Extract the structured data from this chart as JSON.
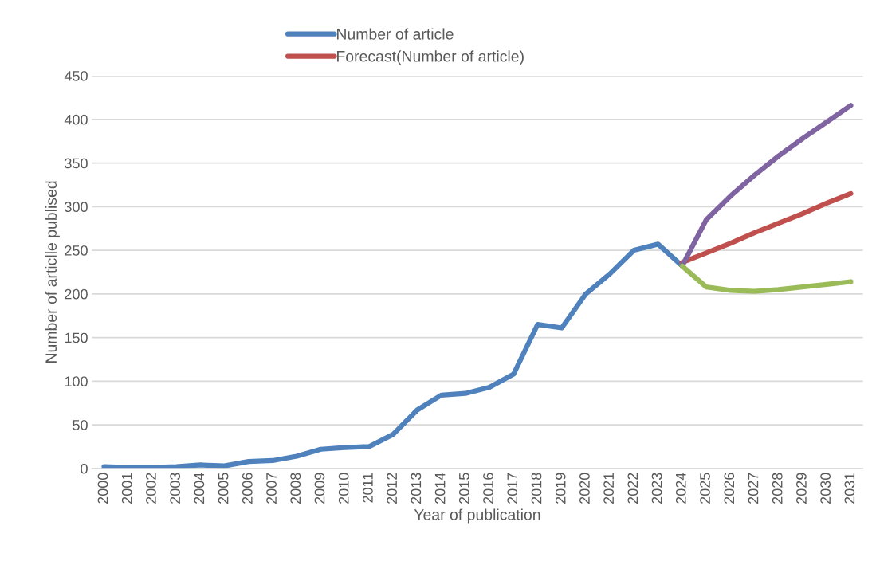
{
  "chart_data": {
    "type": "line",
    "xlabel": "Year of publication",
    "ylabel": "Number of articlle publised",
    "categories": [
      "2000",
      "2001",
      "2002",
      "2003",
      "2004",
      "2005",
      "2006",
      "2007",
      "2008",
      "2009",
      "2010",
      "2011",
      "2012",
      "2013",
      "2014",
      "2015",
      "2016",
      "2017",
      "2018",
      "2019",
      "2020",
      "2021",
      "2022",
      "2023",
      "2024",
      "2025",
      "2026",
      "2027",
      "2028",
      "2029",
      "2030",
      "2031"
    ],
    "series": [
      {
        "name": "Number of article",
        "color": "#4f81bd",
        "values": [
          2,
          1,
          1,
          2,
          4,
          3,
          8,
          9,
          14,
          22,
          24,
          25,
          39,
          67,
          84,
          86,
          93,
          108,
          165,
          161,
          200,
          223,
          250,
          257,
          232,
          null,
          null,
          null,
          null,
          null,
          null,
          null
        ]
      },
      {
        "name": "Forecast(Number of article)",
        "color": "#c0504d",
        "values": [
          null,
          null,
          null,
          null,
          null,
          null,
          null,
          null,
          null,
          null,
          null,
          null,
          null,
          null,
          null,
          null,
          null,
          null,
          null,
          null,
          null,
          null,
          null,
          null,
          236,
          247,
          258,
          270,
          281,
          292,
          304,
          315
        ]
      },
      {
        "color": "#8064a2",
        "values": [
          null,
          null,
          null,
          null,
          null,
          null,
          null,
          null,
          null,
          null,
          null,
          null,
          null,
          null,
          null,
          null,
          null,
          null,
          null,
          null,
          null,
          null,
          null,
          null,
          232,
          285,
          312,
          336,
          358,
          378,
          397,
          416
        ]
      },
      {
        "color": "#9bbb59",
        "values": [
          null,
          null,
          null,
          null,
          null,
          null,
          null,
          null,
          null,
          null,
          null,
          null,
          null,
          null,
          null,
          null,
          null,
          null,
          null,
          null,
          null,
          null,
          null,
          null,
          232,
          208,
          204,
          203,
          205,
          208,
          211,
          214
        ]
      }
    ],
    "ylim": [
      0,
      450
    ],
    "yticks": [
      0,
      50,
      100,
      150,
      200,
      250,
      300,
      350,
      400,
      450
    ],
    "grid": "y",
    "legend": "top",
    "marker": "none",
    "line_style": "solid"
  }
}
